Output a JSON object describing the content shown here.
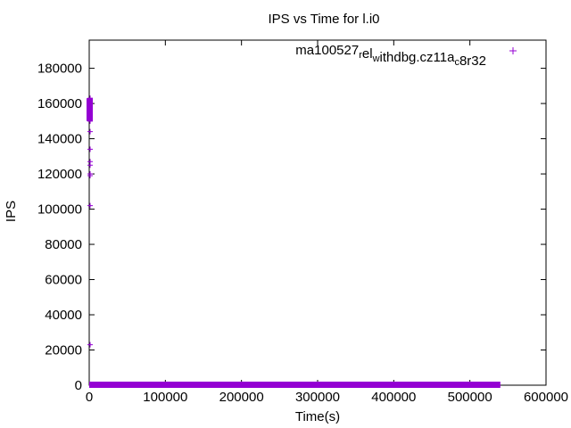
{
  "chart_data": {
    "type": "scatter",
    "title": "IPS vs Time for l.i0",
    "xlabel": "Time(s)",
    "ylabel": "IPS",
    "xlim": [
      0,
      600000
    ],
    "ylim": [
      0,
      196000
    ],
    "xticks": [
      0,
      100000,
      200000,
      300000,
      400000,
      500000,
      600000
    ],
    "yticks": [
      0,
      20000,
      40000,
      60000,
      80000,
      100000,
      120000,
      140000,
      160000,
      180000
    ],
    "grid": false,
    "legend_position": "top-right",
    "series": [
      {
        "name_parts": [
          {
            "t": "ma100527",
            "sub": false
          },
          {
            "t": "r",
            "sub": true
          },
          {
            "t": "el",
            "sub": false
          },
          {
            "t": "w",
            "sub": true
          },
          {
            "t": "ithdbg.cz11a",
            "sub": false
          },
          {
            "t": "c",
            "sub": true
          },
          {
            "t": "8r32",
            "sub": false
          }
        ],
        "color": "#9400d3",
        "marker": "plus",
        "points": [
          [
            0,
            23000
          ],
          [
            0,
            102000
          ],
          [
            0,
            119000
          ],
          [
            0,
            120000
          ],
          [
            0,
            125000
          ],
          [
            0,
            127000
          ],
          [
            0,
            134000
          ],
          [
            0,
            144000
          ],
          [
            0,
            150000
          ],
          [
            0,
            151000
          ],
          [
            0,
            152000
          ],
          [
            0,
            153000
          ],
          [
            0,
            154000
          ],
          [
            0,
            155000
          ],
          [
            0,
            156000
          ],
          [
            0,
            157000
          ],
          [
            0,
            158000
          ],
          [
            0,
            159000
          ],
          [
            0,
            160000
          ],
          [
            0,
            161000
          ],
          [
            0,
            162000
          ],
          [
            0,
            163000
          ]
        ],
        "baseline_band": {
          "x_start": 0,
          "x_end": 540000,
          "y": 0
        }
      }
    ]
  }
}
